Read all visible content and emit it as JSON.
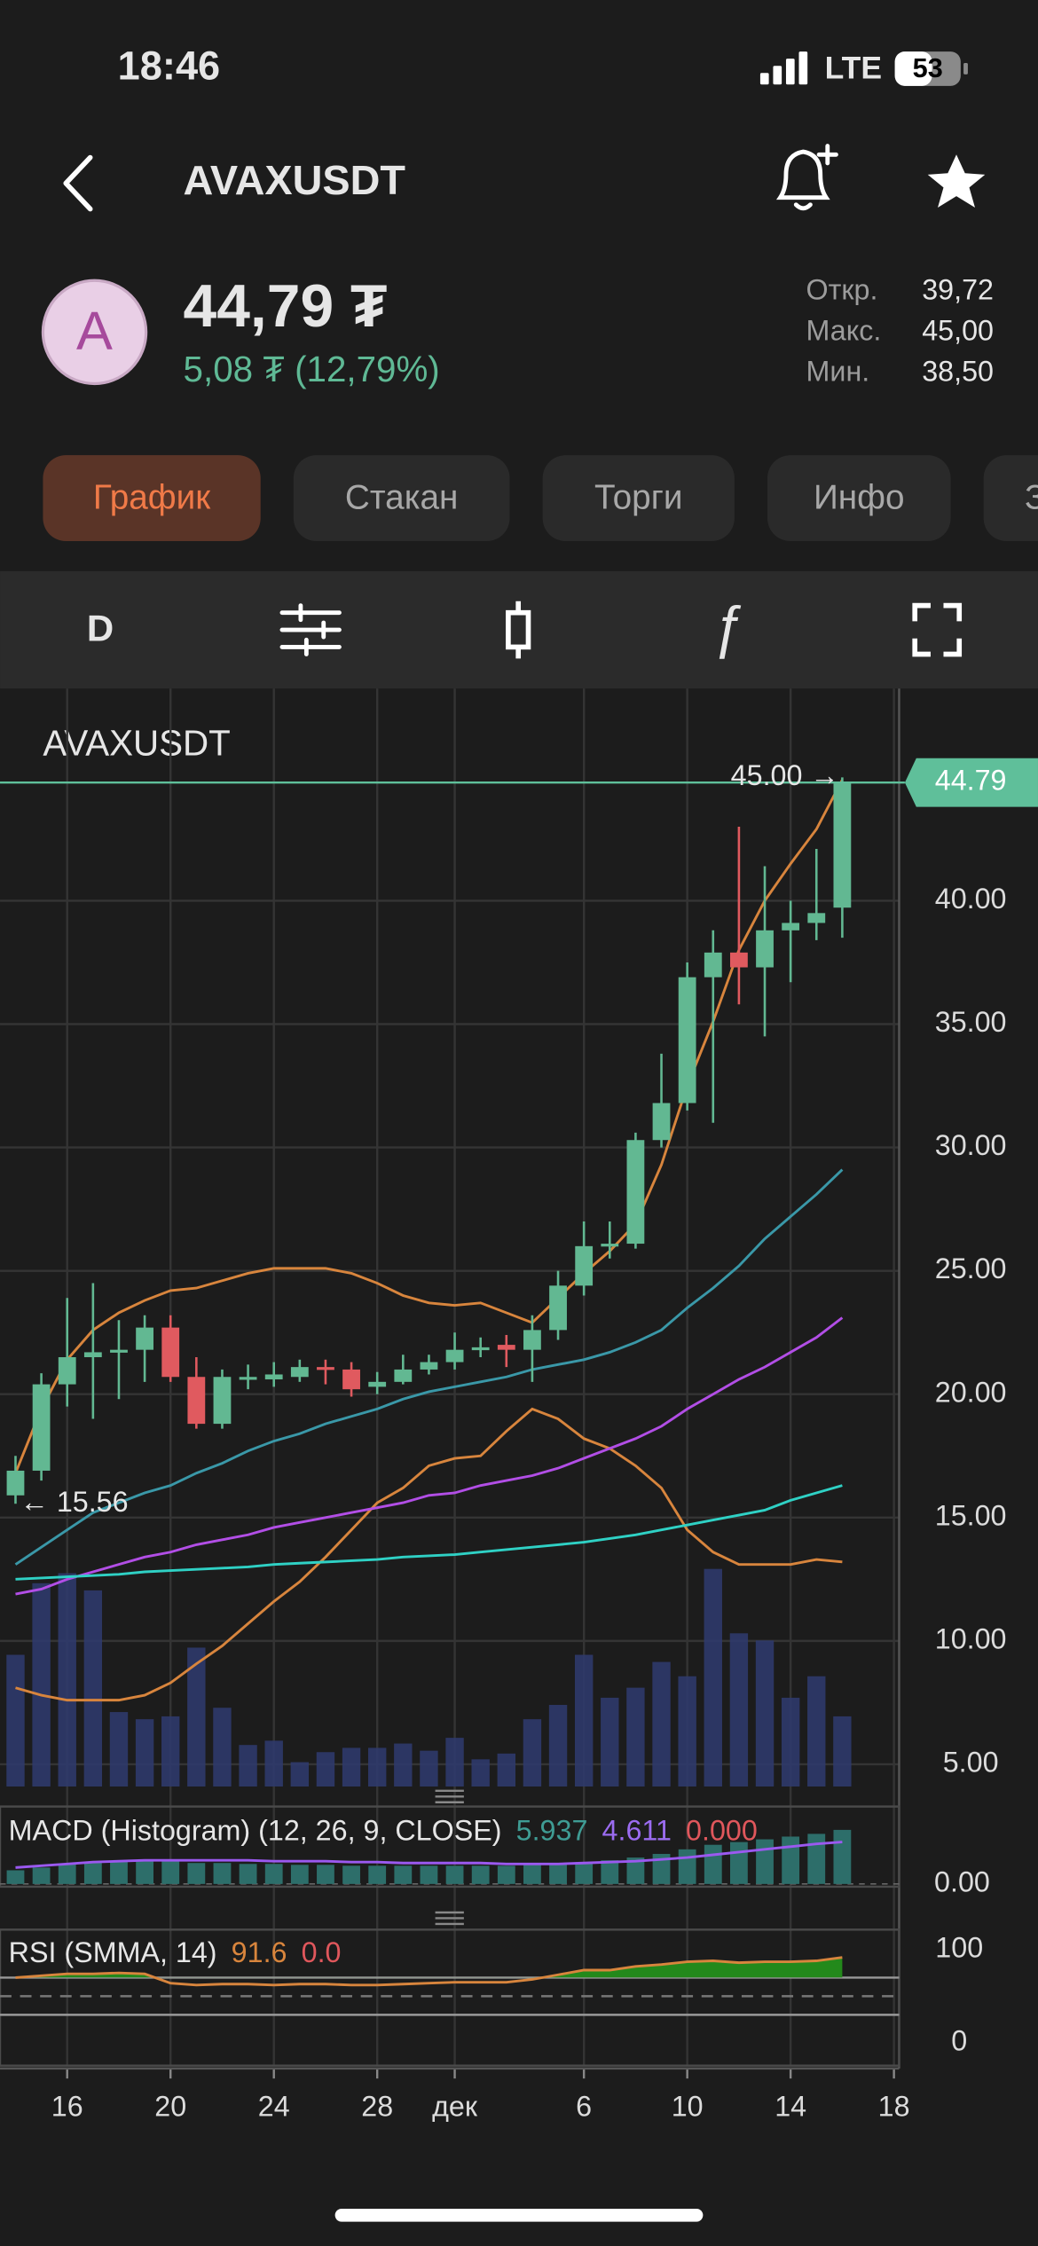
{
  "status_bar": {
    "time": "18:46",
    "network": "LTE",
    "battery": "53"
  },
  "header": {
    "title": "AVAXUSDT"
  },
  "quote": {
    "avatar": "A",
    "price": "44,79 ₮",
    "change": "5,08 ₮ (12,79%)",
    "stats": [
      {
        "label": "Откр.",
        "value": "39,72"
      },
      {
        "label": "Макс.",
        "value": "45,00"
      },
      {
        "label": "Мин.",
        "value": "38,50"
      }
    ]
  },
  "tabs": [
    "График",
    "Стакан",
    "Торги",
    "Инфо",
    "З"
  ],
  "toolbar": {
    "interval": "D"
  },
  "chart_data": {
    "type": "candlestick",
    "title": "AVAXUSDT",
    "open": [
      15.9,
      16.9,
      20.4,
      21.5,
      21.7,
      21.8,
      22.7,
      20.7,
      18.8,
      20.6,
      20.6,
      20.7,
      21.1,
      21.0,
      20.3,
      20.5,
      21.0,
      21.3,
      21.8,
      22.0,
      21.8,
      22.6,
      24.4,
      26.0,
      26.1,
      30.3,
      31.8,
      36.9,
      37.9,
      37.3,
      38.8,
      39.1,
      39.72
    ],
    "high": [
      17.5,
      20.85,
      23.9,
      24.5,
      23.0,
      23.2,
      23.2,
      21.5,
      21.0,
      21.2,
      21.3,
      21.4,
      21.4,
      21.3,
      20.9,
      21.6,
      21.6,
      22.5,
      22.3,
      22.4,
      23.2,
      25.0,
      27.0,
      27.0,
      30.6,
      33.8,
      37.5,
      38.8,
      43.0,
      41.4,
      40.0,
      42.1,
      45.0
    ],
    "low": [
      15.56,
      16.5,
      19.5,
      19.0,
      19.8,
      20.5,
      20.5,
      18.6,
      18.6,
      20.2,
      20.3,
      20.5,
      20.4,
      19.9,
      20.0,
      20.4,
      20.8,
      21.0,
      21.5,
      21.1,
      20.5,
      22.2,
      24.0,
      25.5,
      25.9,
      30.0,
      31.5,
      31.0,
      35.8,
      34.5,
      36.7,
      38.4,
      38.5
    ],
    "close": [
      16.9,
      20.4,
      21.5,
      21.7,
      21.8,
      22.7,
      20.7,
      18.8,
      20.7,
      20.7,
      20.8,
      21.1,
      21.0,
      20.2,
      20.5,
      21.0,
      21.3,
      21.8,
      21.9,
      21.8,
      22.6,
      24.4,
      26.0,
      26.1,
      30.3,
      31.8,
      36.9,
      37.9,
      37.3,
      38.8,
      39.1,
      39.5,
      44.79
    ],
    "up_color": "#62b892",
    "down_color": "#e05a5f",
    "xlim": [
      -0.6,
      34.2
    ],
    "xticks": [
      {
        "value": 2,
        "label": "16"
      },
      {
        "value": 6,
        "label": "20"
      },
      {
        "value": 10,
        "label": "24"
      },
      {
        "value": 14,
        "label": "28"
      },
      {
        "value": 17,
        "label": "дек"
      },
      {
        "value": 22,
        "label": "6"
      },
      {
        "value": 26,
        "label": "10"
      },
      {
        "value": 30,
        "label": "14"
      },
      {
        "value": 34,
        "label": "18"
      }
    ],
    "ylim": [
      4.1,
      48.6
    ],
    "yticks": [
      {
        "value": 40,
        "label": "40.00"
      },
      {
        "value": 35,
        "label": "35.00"
      },
      {
        "value": 30,
        "label": "30.00"
      },
      {
        "value": 25,
        "label": "25.00"
      },
      {
        "value": 20,
        "label": "20.00"
      },
      {
        "value": 15,
        "label": "15.00"
      },
      {
        "value": 10,
        "label": "10.00"
      },
      {
        "value": 5,
        "label": "5.00"
      }
    ],
    "grid": true,
    "last_price": 44.79,
    "last_price_color": "#5fbf9a",
    "annotations": [
      {
        "value": 45.0,
        "label": "45.00 →",
        "side": "left"
      },
      {
        "value": 15.56,
        "label": "← 15.56",
        "side": "right"
      }
    ],
    "lines": [
      {
        "color": "#d8853d",
        "values": [
          16.8,
          19.4,
          21.4,
          22.6,
          23.3,
          23.8,
          24.2,
          24.3,
          24.6,
          24.9,
          25.1,
          25.1,
          25.1,
          24.9,
          24.5,
          24.0,
          23.7,
          23.6,
          23.7,
          23.3,
          22.9,
          23.9,
          24.9,
          25.8,
          26.9,
          29.3,
          32.5,
          35.1,
          38.0,
          40.0,
          41.5,
          42.9,
          44.9
        ]
      },
      {
        "color": "#d8853d",
        "values": [
          8.1,
          7.8,
          7.6,
          7.6,
          7.6,
          7.8,
          8.3,
          9.07,
          9.8,
          10.7,
          11.6,
          12.4,
          13.4,
          14.5,
          15.6,
          16.2,
          17.1,
          17.4,
          17.5,
          18.5,
          19.4,
          19.0,
          18.2,
          17.8,
          17.1,
          16.2,
          14.5,
          13.6,
          13.1,
          13.1,
          13.1,
          13.3,
          13.2
        ]
      },
      {
        "color": "#3a98a8",
        "values": [
          13.1,
          13.8,
          14.5,
          15.2,
          15.6,
          16.0,
          16.3,
          16.8,
          17.2,
          17.7,
          18.1,
          18.4,
          18.8,
          19.1,
          19.4,
          19.8,
          20.1,
          20.3,
          20.5,
          20.7,
          21.0,
          21.2,
          21.4,
          21.7,
          22.1,
          22.6,
          23.5,
          24.3,
          25.2,
          26.3,
          27.2,
          28.1,
          29.1
        ]
      },
      {
        "color": "#b24ee6",
        "values": [
          11.9,
          12.1,
          12.5,
          12.8,
          13.1,
          13.4,
          13.6,
          13.9,
          14.1,
          14.3,
          14.6,
          14.8,
          15.0,
          15.2,
          15.4,
          15.6,
          15.9,
          16.0,
          16.3,
          16.5,
          16.7,
          17.0,
          17.4,
          17.8,
          18.2,
          18.7,
          19.4,
          20.0,
          20.6,
          21.1,
          21.7,
          22.3,
          23.1
        ]
      },
      {
        "color": "#2fd1c5",
        "values": [
          12.5,
          12.55,
          12.6,
          12.65,
          12.7,
          12.8,
          12.85,
          12.9,
          12.95,
          13.0,
          13.1,
          13.15,
          13.2,
          13.25,
          13.3,
          13.4,
          13.45,
          13.5,
          13.6,
          13.7,
          13.8,
          13.9,
          14.0,
          14.15,
          14.3,
          14.5,
          14.7,
          14.9,
          15.1,
          15.3,
          15.7,
          16.0,
          16.3
        ]
      }
    ],
    "volume": {
      "color": "#2f3a6c",
      "lim": [
        0,
        767
      ],
      "values": [
        92,
        142,
        149,
        137,
        52,
        47,
        49,
        97,
        55,
        29,
        32,
        17,
        24,
        27,
        27,
        30,
        25,
        34,
        19,
        23,
        47,
        57,
        92,
        62,
        69,
        87,
        77,
        152,
        107,
        102,
        62,
        77,
        49
      ]
    },
    "macd": {
      "label": "MACD (Histogram) (12, 26, 9, CLOSE)",
      "readouts": [
        "5.937",
        "4.611",
        "0.000"
      ],
      "readout_colors": [
        "#3f9c94",
        "#9b6cf0",
        "#e0575c"
      ],
      "ylim": [
        -0.3,
        8.5
      ],
      "yticks": [
        {
          "value": 0,
          "label": "0.00"
        }
      ],
      "histogram_color": "#2d6e6a",
      "histogram": [
        1.5,
        1.8,
        2.2,
        2.4,
        2.5,
        2.6,
        2.5,
        2.3,
        2.3,
        2.2,
        2.2,
        2.1,
        2.1,
        2.0,
        2.0,
        2.0,
        2.0,
        2.0,
        2.0,
        2.0,
        2.1,
        2.2,
        2.4,
        2.6,
        2.9,
        3.3,
        3.8,
        4.3,
        4.6,
        4.9,
        5.2,
        5.5,
        5.937
      ],
      "signal_color": "#9b59f0",
      "signal": [
        1.8,
        2.0,
        2.2,
        2.4,
        2.5,
        2.6,
        2.6,
        2.6,
        2.6,
        2.6,
        2.5,
        2.5,
        2.5,
        2.4,
        2.4,
        2.3,
        2.3,
        2.3,
        2.3,
        2.2,
        2.2,
        2.2,
        2.3,
        2.4,
        2.5,
        2.7,
        2.9,
        3.2,
        3.5,
        3.8,
        4.1,
        4.4,
        4.611
      ]
    },
    "rsi": {
      "label": "RSI (SMMA, 14)",
      "readouts": [
        "91.6",
        "0.0"
      ],
      "readout_colors": [
        "#d8853d",
        "#e0575c"
      ],
      "ylim": [
        -24.6,
        121.5
      ],
      "yticks": [
        100,
        0
      ],
      "levels": [
        70,
        50,
        30
      ],
      "color": "#d8853d",
      "fill_color": "#23891b",
      "values": [
        70,
        72,
        74,
        74,
        75,
        74,
        64,
        62,
        63,
        63,
        62,
        63,
        63,
        62,
        62,
        63,
        64,
        65,
        65,
        65,
        68,
        73,
        78,
        78,
        82,
        84,
        87,
        88,
        86,
        87,
        87,
        88,
        91.6
      ]
    }
  }
}
